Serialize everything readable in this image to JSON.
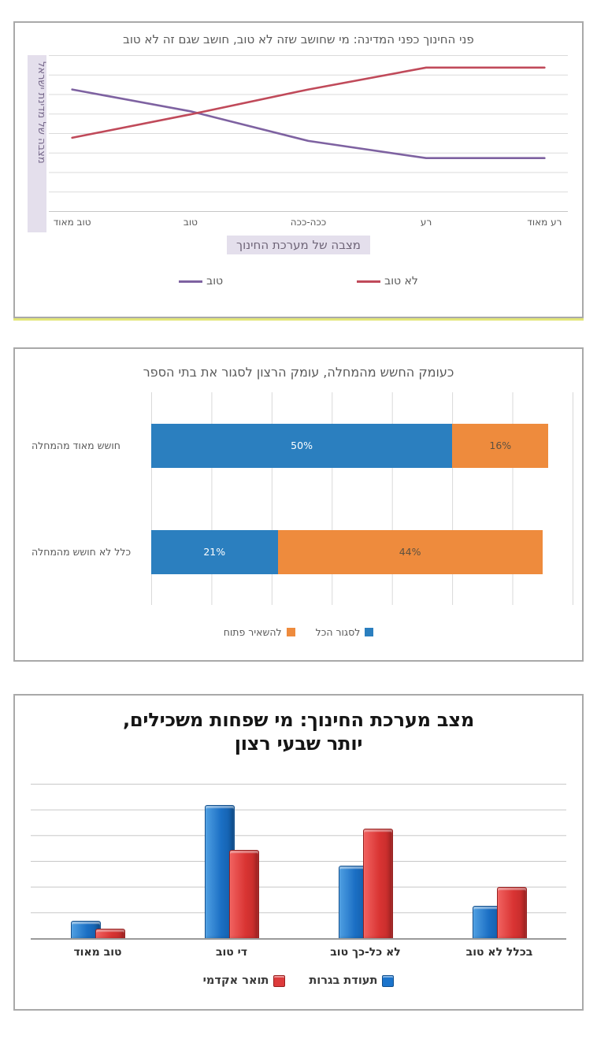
{
  "page": {
    "background": "#ffffff",
    "panel_border_color": "#a9a9a9",
    "panel1_highlight_color": "#e3e67a"
  },
  "chart_data": [
    {
      "type": "line",
      "title": "פני החינוך כפני המדינה: מי שחושב שזה לא טוב, חושב שגם זה לא טוב",
      "xlabel": "מצבה של מערכת החינוך",
      "ylabel": "מצבה של מדינת ישראל",
      "categories": [
        "טוב מאוד",
        "טוב",
        "ככה-ככה",
        "רע",
        "רע מאוד"
      ],
      "series": [
        {
          "name": "טוב",
          "color": "#7e62a1",
          "values": [
            78,
            64,
            45,
            34,
            34
          ]
        },
        {
          "name": "לא טוב",
          "color": "#c04a5a",
          "values": [
            47,
            62,
            78,
            92,
            92
          ]
        }
      ],
      "ylim": [
        0,
        100
      ],
      "grid": "horizontal",
      "legend_position": "bottom",
      "note": "no numeric axis labels shown; values are percent of plot height estimated from gridlines"
    },
    {
      "type": "bar",
      "orientation": "horizontal-stacked",
      "title": "כעומק החשש מהמחלה, עומק הרצון לסגור את בתי הספר",
      "categories": [
        "חושש מאוד מהמחלה",
        "כלל לא חושש מהמחלה"
      ],
      "series": [
        {
          "name": "לסגור הכל",
          "color": "#2b7fbf",
          "values": [
            50,
            21
          ],
          "labels": [
            "50%",
            "21%"
          ]
        },
        {
          "name": "להשאיר פתוח",
          "color": "#ee8b3d",
          "values": [
            16,
            44
          ],
          "labels": [
            "16%",
            "44%"
          ]
        }
      ],
      "xlim": [
        0,
        70
      ],
      "grid": "vertical",
      "legend_position": "bottom"
    },
    {
      "type": "bar",
      "orientation": "vertical-clustered-3d",
      "title_line1": "מצב מערכת החינוך: מי שפחות משכילים,",
      "title_line2": "יותר שבעי רצון",
      "categories": [
        "טוב מאוד",
        "די טוב",
        "לא כל-כך טוב",
        "בכלל לא טוב"
      ],
      "series": [
        {
          "name": "תעודת בגרות",
          "color": "#1b74cc",
          "values": [
            11,
            86,
            47,
            21
          ]
        },
        {
          "name": "תואר אקדמי",
          "color": "#dd3b3c",
          "values": [
            6,
            57,
            71,
            33
          ]
        }
      ],
      "ylim": [
        0,
        100
      ],
      "grid": "horizontal",
      "legend_position": "bottom",
      "note": "no numeric axis labels shown; values are percent of plot height estimated from gridlines"
    }
  ]
}
